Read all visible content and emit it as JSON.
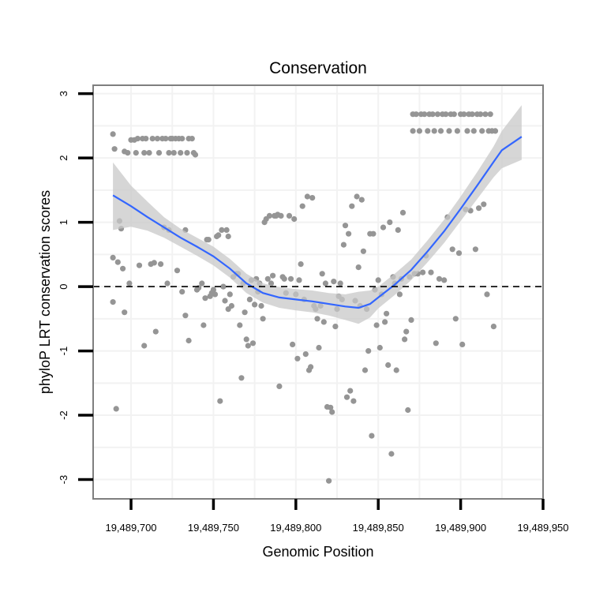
{
  "chart_data": {
    "type": "scatter",
    "title": "Conservation",
    "xlabel": "Genomic Position",
    "ylabel": "phyloP LRT conservation scores",
    "xlim": [
      19489677,
      19489950
    ],
    "ylim": [
      -3.3,
      3.13
    ],
    "x_ticks": [
      19489700,
      19489750,
      19489800,
      19489850,
      19489900,
      19489950
    ],
    "x_tick_labels": [
      "19,489,700",
      "19,489,750",
      "19,489,800",
      "19,489,850",
      "19,489,900",
      "19,489,950"
    ],
    "y_ticks": [
      -3,
      -2,
      -1,
      0,
      1,
      2,
      3
    ],
    "y_tick_labels": [
      "-3",
      "-2",
      "-1",
      "0",
      "1",
      "2",
      "3"
    ],
    "reference_line": {
      "y": 0,
      "style": "dashed"
    },
    "colors": {
      "points": "#959595",
      "smooth": "#3366ff",
      "band": "#c8c8c8",
      "panel_border": "#7f7f7f",
      "grid": "#f2f2f2"
    },
    "points": [
      [
        19489689,
        2.37
      ],
      [
        19489690,
        2.14
      ],
      [
        19489689,
        0.45
      ],
      [
        19489689,
        -0.24
      ],
      [
        19489691,
        -1.9
      ],
      [
        19489692,
        0.38
      ],
      [
        19489693,
        1.02
      ],
      [
        19489694,
        0.9
      ],
      [
        19489695,
        0.28
      ],
      [
        19489696,
        -0.4
      ],
      [
        19489696,
        2.1
      ],
      [
        19489698,
        2.08
      ],
      [
        19489699,
        0.05
      ],
      [
        19489700,
        2.28
      ],
      [
        19489702,
        2.28
      ],
      [
        19489703,
        2.08
      ],
      [
        19489704,
        2.3
      ],
      [
        19489705,
        0.33
      ],
      [
        19489707,
        2.3
      ],
      [
        19489708,
        -0.92
      ],
      [
        19489708,
        2.08
      ],
      [
        19489709,
        2.3
      ],
      [
        19489711,
        2.08
      ],
      [
        19489712,
        0.35
      ],
      [
        19489713,
        2.3
      ],
      [
        19489714,
        0.37
      ],
      [
        19489715,
        -0.7
      ],
      [
        19489716,
        2.3
      ],
      [
        19489717,
        2.08
      ],
      [
        19489718,
        0.35
      ],
      [
        19489719,
        2.3
      ],
      [
        19489720,
        0.92
      ],
      [
        19489721,
        2.3
      ],
      [
        19489722,
        0.05
      ],
      [
        19489723,
        0.88
      ],
      [
        19489723,
        2.08
      ],
      [
        19489724,
        2.3
      ],
      [
        19489725,
        2.3
      ],
      [
        19489726,
        2.08
      ],
      [
        19489727,
        2.3
      ],
      [
        19489728,
        0.25
      ],
      [
        19489729,
        2.3
      ],
      [
        19489730,
        2.08
      ],
      [
        19489731,
        -0.08
      ],
      [
        19489731,
        2.3
      ],
      [
        19489733,
        -0.45
      ],
      [
        19489733,
        0.88
      ],
      [
        19489734,
        2.08
      ],
      [
        19489735,
        -0.84
      ],
      [
        19489735,
        2.3
      ],
      [
        19489737,
        2.3
      ],
      [
        19489738,
        2.08
      ],
      [
        19489739,
        2.05
      ],
      [
        19489740,
        -0.05
      ],
      [
        19489741,
        -0.02
      ],
      [
        19489743,
        0.05
      ],
      [
        19489744,
        -0.6
      ],
      [
        19489745,
        -0.18
      ],
      [
        19489746,
        0.73
      ],
      [
        19489747,
        0.73
      ],
      [
        19489748,
        -0.15
      ],
      [
        19489749,
        -0.1
      ],
      [
        19489750,
        -0.05
      ],
      [
        19489751,
        -0.12
      ],
      [
        19489752,
        0.78
      ],
      [
        19489753,
        0.8
      ],
      [
        19489754,
        -1.78
      ],
      [
        19489755,
        0.88
      ],
      [
        19489756,
        0.0
      ],
      [
        19489757,
        -0.22
      ],
      [
        19489758,
        0.88
      ],
      [
        19489759,
        0.78
      ],
      [
        19489759,
        -0.35
      ],
      [
        19489760,
        -0.12
      ],
      [
        19489761,
        -0.3
      ],
      [
        19489762,
        0.15
      ],
      [
        19489764,
        0.2
      ],
      [
        19489765,
        0.2
      ],
      [
        19489766,
        -0.6
      ],
      [
        19489767,
        -1.42
      ],
      [
        19489768,
        0.05
      ],
      [
        19489769,
        -0.4
      ],
      [
        19489770,
        -0.82
      ],
      [
        19489771,
        -0.92
      ],
      [
        19489772,
        -0.2
      ],
      [
        19489773,
        0.1
      ],
      [
        19489774,
        -0.88
      ],
      [
        19489775,
        -0.28
      ],
      [
        19489776,
        0.12
      ],
      [
        19489777,
        -0.08
      ],
      [
        19489778,
        0.05
      ],
      [
        19489779,
        -0.3
      ],
      [
        19489780,
        -0.5
      ],
      [
        19489781,
        1.0
      ],
      [
        19489782,
        1.05
      ],
      [
        19489783,
        0.12
      ],
      [
        19489784,
        1.1
      ],
      [
        19489785,
        0.05
      ],
      [
        19489786,
        0.17
      ],
      [
        19489787,
        1.1
      ],
      [
        19489788,
        1.1
      ],
      [
        19489789,
        1.12
      ],
      [
        19489790,
        -1.55
      ],
      [
        19489791,
        1.1
      ],
      [
        19489792,
        0.15
      ],
      [
        19489793,
        0.12
      ],
      [
        19489794,
        -0.1
      ],
      [
        19489796,
        1.1
      ],
      [
        19489797,
        0.12
      ],
      [
        19489798,
        -0.9
      ],
      [
        19489799,
        1.05
      ],
      [
        19489800,
        -0.12
      ],
      [
        19489801,
        -1.12
      ],
      [
        19489802,
        0.1
      ],
      [
        19489803,
        0.35
      ],
      [
        19489804,
        1.25
      ],
      [
        19489805,
        -0.2
      ],
      [
        19489806,
        -1.05
      ],
      [
        19489807,
        1.4
      ],
      [
        19489808,
        -1.3
      ],
      [
        19489809,
        -1.25
      ],
      [
        19489810,
        1.38
      ],
      [
        19489811,
        -0.3
      ],
      [
        19489812,
        -0.35
      ],
      [
        19489813,
        -0.5
      ],
      [
        19489814,
        -0.95
      ],
      [
        19489815,
        -0.3
      ],
      [
        19489816,
        0.2
      ],
      [
        19489817,
        -0.55
      ],
      [
        19489818,
        0.05
      ],
      [
        19489819,
        -1.87
      ],
      [
        19489820,
        -3.02
      ],
      [
        19489821,
        -1.88
      ],
      [
        19489822,
        -1.95
      ],
      [
        19489823,
        0.08
      ],
      [
        19489824,
        -0.62
      ],
      [
        19489825,
        -0.35
      ],
      [
        19489826,
        -0.15
      ],
      [
        19489827,
        0.05
      ],
      [
        19489828,
        -0.2
      ],
      [
        19489829,
        0.65
      ],
      [
        19489830,
        0.95
      ],
      [
        19489831,
        -1.72
      ],
      [
        19489832,
        0.82
      ],
      [
        19489833,
        -1.62
      ],
      [
        19489834,
        1.25
      ],
      [
        19489835,
        -1.78
      ],
      [
        19489836,
        -0.22
      ],
      [
        19489837,
        1.4
      ],
      [
        19489838,
        0.3
      ],
      [
        19489839,
        -0.3
      ],
      [
        19489840,
        1.35
      ],
      [
        19489841,
        0.55
      ],
      [
        19489842,
        -1.3
      ],
      [
        19489843,
        -0.35
      ],
      [
        19489844,
        -1.0
      ],
      [
        19489845,
        0.82
      ],
      [
        19489846,
        -2.32
      ],
      [
        19489847,
        0.82
      ],
      [
        19489848,
        -0.05
      ],
      [
        19489849,
        -0.6
      ],
      [
        19489850,
        0.1
      ],
      [
        19489851,
        -0.95
      ],
      [
        19489852,
        -0.12
      ],
      [
        19489853,
        0.92
      ],
      [
        19489854,
        -0.55
      ],
      [
        19489855,
        -0.42
      ],
      [
        19489856,
        -1.22
      ],
      [
        19489857,
        1.0
      ],
      [
        19489858,
        -2.6
      ],
      [
        19489859,
        0.15
      ],
      [
        19489860,
        0.05
      ],
      [
        19489861,
        -1.3
      ],
      [
        19489862,
        0.88
      ],
      [
        19489863,
        -0.12
      ],
      [
        19489864,
        0.12
      ],
      [
        19489865,
        1.15
      ],
      [
        19489866,
        -0.82
      ],
      [
        19489867,
        -0.7
      ],
      [
        19489868,
        -1.92
      ],
      [
        19489869,
        0.15
      ],
      [
        19489870,
        -0.52
      ],
      [
        19489871,
        2.68
      ],
      [
        19489871,
        2.42
      ],
      [
        19489872,
        0.2
      ],
      [
        19489873,
        2.68
      ],
      [
        19489874,
        0.2
      ],
      [
        19489875,
        2.42
      ],
      [
        19489876,
        2.68
      ],
      [
        19489877,
        0.22
      ],
      [
        19489878,
        2.68
      ],
      [
        19489879,
        0.48
      ],
      [
        19489880,
        2.42
      ],
      [
        19489881,
        2.68
      ],
      [
        19489882,
        0.22
      ],
      [
        19489883,
        2.68
      ],
      [
        19489884,
        2.42
      ],
      [
        19489885,
        -0.88
      ],
      [
        19489886,
        2.68
      ],
      [
        19489887,
        0.12
      ],
      [
        19489888,
        2.42
      ],
      [
        19489889,
        2.68
      ],
      [
        19489890,
        0.1
      ],
      [
        19489891,
        2.68
      ],
      [
        19489892,
        1.08
      ],
      [
        19489893,
        2.42
      ],
      [
        19489894,
        2.68
      ],
      [
        19489895,
        0.58
      ],
      [
        19489896,
        2.68
      ],
      [
        19489897,
        -0.5
      ],
      [
        19489898,
        2.42
      ],
      [
        19489899,
        0.52
      ],
      [
        19489900,
        2.68
      ],
      [
        19489901,
        -0.9
      ],
      [
        19489902,
        2.68
      ],
      [
        19489903,
        1.2
      ],
      [
        19489904,
        2.42
      ],
      [
        19489905,
        2.68
      ],
      [
        19489906,
        1.18
      ],
      [
        19489907,
        2.68
      ],
      [
        19489908,
        2.42
      ],
      [
        19489909,
        0.58
      ],
      [
        19489910,
        2.68
      ],
      [
        19489911,
        1.22
      ],
      [
        19489912,
        2.68
      ],
      [
        19489913,
        2.42
      ],
      [
        19489914,
        1.28
      ],
      [
        19489915,
        2.68
      ],
      [
        19489916,
        -0.12
      ],
      [
        19489917,
        2.42
      ],
      [
        19489918,
        2.68
      ],
      [
        19489919,
        2.42
      ],
      [
        19489920,
        -0.62
      ],
      [
        19489921,
        2.42
      ]
    ],
    "smooth": {
      "x": [
        19489689,
        19489700,
        19489710,
        19489720,
        19489730,
        19489740,
        19489750,
        19489760,
        19489770,
        19489780,
        19489790,
        19489800,
        19489810,
        19489820,
        19489830,
        19489838,
        19489845,
        19489850,
        19489860,
        19489870,
        19489880,
        19489890,
        19489900,
        19489910,
        19489920,
        19489925,
        19489937
      ],
      "y": [
        1.42,
        1.25,
        1.08,
        0.92,
        0.76,
        0.62,
        0.47,
        0.28,
        0.05,
        -0.1,
        -0.17,
        -0.2,
        -0.23,
        -0.27,
        -0.31,
        -0.33,
        -0.27,
        -0.17,
        0.03,
        0.26,
        0.55,
        0.86,
        1.21,
        1.57,
        1.94,
        2.12,
        2.33
      ],
      "lower": [
        0.88,
        0.93,
        0.87,
        0.76,
        0.62,
        0.48,
        0.33,
        0.14,
        -0.1,
        -0.25,
        -0.33,
        -0.37,
        -0.4,
        -0.45,
        -0.52,
        -0.58,
        -0.48,
        -0.34,
        -0.13,
        0.1,
        0.38,
        0.68,
        1.02,
        1.36,
        1.7,
        1.84,
        1.97
      ],
      "upper": [
        1.93,
        1.57,
        1.32,
        1.08,
        0.9,
        0.76,
        0.62,
        0.43,
        0.2,
        0.05,
        -0.01,
        -0.04,
        -0.06,
        -0.1,
        -0.12,
        -0.08,
        -0.06,
        0.0,
        0.2,
        0.42,
        0.72,
        1.04,
        1.4,
        1.78,
        2.18,
        2.42,
        2.82
      ]
    }
  }
}
